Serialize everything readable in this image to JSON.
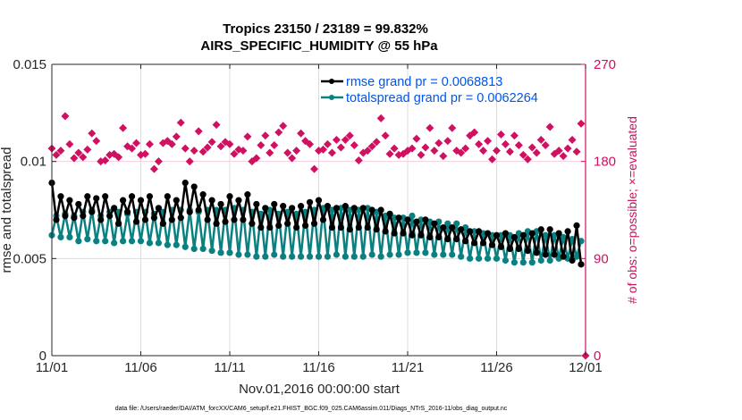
{
  "chart_data": {
    "type": "line",
    "title_lines": [
      "Tropics 23150 / 23189 = 99.832%",
      "AIRS_SPECIFIC_HUMIDITY @ 55 hPa"
    ],
    "xlabel": "Nov.01,2016 00:00:00 start",
    "ylabel_left": "rmse and totalspread",
    "ylabel_right": "# of obs: o=possible; ×=evaluated",
    "x_range_days": [
      0,
      30
    ],
    "x_ticks": [
      {
        "day": 0,
        "label": "11/01"
      },
      {
        "day": 5,
        "label": "11/06"
      },
      {
        "day": 10,
        "label": "11/11"
      },
      {
        "day": 15,
        "label": "11/16"
      },
      {
        "day": 20,
        "label": "11/21"
      },
      {
        "day": 25,
        "label": "11/26"
      },
      {
        "day": 30,
        "label": "12/01"
      }
    ],
    "ylim_left": [
      0,
      0.015
    ],
    "y_ticks_left": [
      {
        "value": 0,
        "label": "0"
      },
      {
        "value": 0.005,
        "label": "0.005"
      },
      {
        "value": 0.01,
        "label": "0.01"
      },
      {
        "value": 0.015,
        "label": "0.015"
      }
    ],
    "ylim_right": [
      0,
      270
    ],
    "y_ticks_right": [
      {
        "value": 0,
        "label": "0"
      },
      {
        "value": 90,
        "label": "90"
      },
      {
        "value": 180,
        "label": "180"
      },
      {
        "value": 270,
        "label": "270"
      }
    ],
    "grid": "x-only-vertical plus right-axis horizontal (light)",
    "legend_position": "top-right",
    "time_step_days": 0.25,
    "series": [
      {
        "name": "rmse grand pr = 0.0068813",
        "axis": "left",
        "color": "#000000",
        "values": [
          0.0089,
          0.007,
          0.0082,
          0.0072,
          0.008,
          0.0071,
          0.0078,
          0.0072,
          0.0082,
          0.0074,
          0.0081,
          0.007,
          0.0082,
          0.0072,
          0.0076,
          0.0068,
          0.008,
          0.0074,
          0.0082,
          0.0069,
          0.008,
          0.007,
          0.0082,
          0.0071,
          0.0076,
          0.0068,
          0.0082,
          0.007,
          0.008,
          0.0071,
          0.0089,
          0.0074,
          0.0087,
          0.0075,
          0.0083,
          0.007,
          0.008,
          0.0068,
          0.0078,
          0.0069,
          0.0082,
          0.007,
          0.008,
          0.007,
          0.0083,
          0.0068,
          0.0078,
          0.0066,
          0.0076,
          0.0066,
          0.0078,
          0.0067,
          0.0077,
          0.0068,
          0.0076,
          0.0066,
          0.0077,
          0.0067,
          0.0079,
          0.0068,
          0.008,
          0.007,
          0.0077,
          0.0066,
          0.0076,
          0.0066,
          0.0077,
          0.0065,
          0.0076,
          0.0066,
          0.0076,
          0.0066,
          0.0075,
          0.0065,
          0.0075,
          0.0064,
          0.0073,
          0.0063,
          0.0071,
          0.0063,
          0.007,
          0.0062,
          0.0069,
          0.0062,
          0.007,
          0.0061,
          0.0068,
          0.0061,
          0.0066,
          0.006,
          0.0066,
          0.006,
          0.0065,
          0.0059,
          0.0064,
          0.0058,
          0.0064,
          0.0058,
          0.0063,
          0.0057,
          0.0062,
          0.0056,
          0.0063,
          0.0055,
          0.0061,
          0.0055,
          0.0062,
          0.0054,
          0.0063,
          0.0053,
          0.0065,
          0.0052,
          0.0065,
          0.0052,
          0.0063,
          0.0051,
          0.0064,
          0.0049,
          0.0067,
          0.0047
        ]
      },
      {
        "name": "totalspread grand pr = 0.0062264",
        "axis": "left",
        "color": "#0a8080",
        "values": [
          0.0062,
          0.0072,
          0.0061,
          0.0073,
          0.0061,
          0.0072,
          0.0059,
          0.0074,
          0.006,
          0.0075,
          0.0059,
          0.0072,
          0.0059,
          0.0074,
          0.0058,
          0.0074,
          0.0059,
          0.0073,
          0.0059,
          0.0074,
          0.0059,
          0.0074,
          0.0058,
          0.0073,
          0.0058,
          0.0074,
          0.0057,
          0.0075,
          0.0057,
          0.0075,
          0.0056,
          0.0075,
          0.0055,
          0.0074,
          0.0055,
          0.0075,
          0.0054,
          0.0075,
          0.0053,
          0.0075,
          0.0053,
          0.0076,
          0.0052,
          0.0075,
          0.0052,
          0.0074,
          0.0051,
          0.0073,
          0.0051,
          0.0075,
          0.0052,
          0.0073,
          0.0051,
          0.0074,
          0.0051,
          0.0073,
          0.0051,
          0.0074,
          0.0051,
          0.0075,
          0.0051,
          0.0076,
          0.0051,
          0.0075,
          0.0052,
          0.0076,
          0.0051,
          0.0075,
          0.0051,
          0.0075,
          0.0051,
          0.0076,
          0.0052,
          0.0074,
          0.0051,
          0.0072,
          0.0052,
          0.0071,
          0.0052,
          0.0071,
          0.0053,
          0.0072,
          0.0053,
          0.007,
          0.0053,
          0.0069,
          0.0052,
          0.0069,
          0.0052,
          0.0068,
          0.0052,
          0.0068,
          0.0051,
          0.0066,
          0.005,
          0.0064,
          0.005,
          0.0063,
          0.005,
          0.0062,
          0.005,
          0.0062,
          0.0049,
          0.0062,
          0.0048,
          0.0063,
          0.0048,
          0.0064,
          0.0048,
          0.0064,
          0.0049,
          0.0062,
          0.0049,
          0.0062,
          0.005,
          0.0061,
          0.005,
          0.006,
          0.0051,
          0.0059
        ]
      },
      {
        "name": "# obs possible / evaluated",
        "axis": "right",
        "color": "#d01060",
        "marker": "diamond",
        "values": [
          192,
          186,
          190,
          222,
          196,
          183,
          188,
          184,
          191,
          206,
          199,
          180,
          181,
          186,
          187,
          184,
          211,
          194,
          192,
          197,
          186,
          187,
          196,
          173,
          180,
          197,
          199,
          196,
          203,
          216,
          192,
          180,
          190,
          208,
          189,
          193,
          198,
          214,
          194,
          198,
          196,
          187,
          191,
          190,
          203,
          180,
          183,
          195,
          204,
          188,
          195,
          207,
          213,
          188,
          183,
          190,
          206,
          199,
          196,
          173,
          190,
          191,
          196,
          188,
          200,
          193,
          200,
          204,
          195,
          181,
          188,
          190,
          194,
          198,
          220,
          204,
          187,
          192,
          186,
          187,
          190,
          192,
          201,
          186,
          193,
          211,
          190,
          197,
          185,
          199,
          211,
          190,
          188,
          192,
          204,
          207,
          196,
          190,
          199,
          182,
          190,
          205,
          196,
          189,
          204,
          195,
          186,
          182,
          193,
          188,
          200,
          195,
          212,
          187,
          190,
          185,
          192,
          200,
          189,
          215
        ],
        "final_value": 0
      }
    ],
    "legend": [
      {
        "label": "rmse grand pr = 0.0068813",
        "color": "#000000"
      },
      {
        "label": "totalspread grand pr = 0.0062264",
        "color": "#0a8080"
      }
    ]
  },
  "footer": "data file: /Users/raeder/DAI/ATM_forcXX/CAM6_setup/f.e21.FHIST_BGC.f09_025.CAM6assim.011/Diags_NTrS_2016-11/obs_diag_output.nc"
}
